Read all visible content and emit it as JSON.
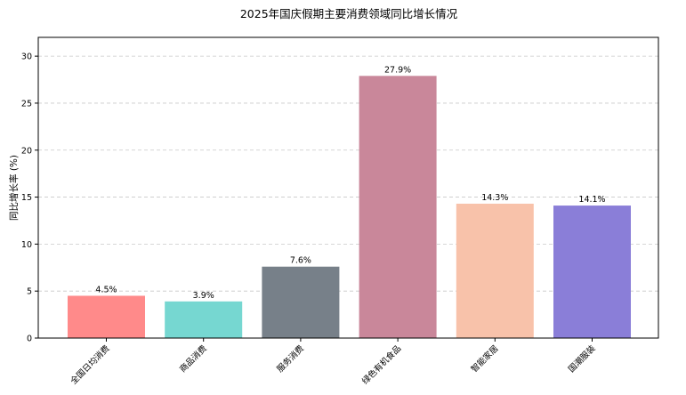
{
  "chart_data": {
    "type": "bar",
    "title": "2025年国庆假期主要消费领域同比增长情况",
    "xlabel": "",
    "ylabel": "同比增长率 (%)",
    "ylim": [
      0,
      32
    ],
    "yticks": [
      0,
      5,
      10,
      15,
      20,
      25,
      30
    ],
    "grid": true,
    "categories": [
      "全国日均消费",
      "商品消费",
      "服务消费",
      "绿色有机食品",
      "智能家居",
      "国潮服装"
    ],
    "values": [
      4.5,
      3.9,
      7.6,
      27.9,
      14.3,
      14.1
    ],
    "value_labels": [
      "4.5%",
      "3.9%",
      "7.6%",
      "27.9%",
      "14.3%",
      "14.1%"
    ],
    "colors": [
      "#ff8a8a",
      "#76d7d1",
      "#778089",
      "#c9879a",
      "#f8c2aa",
      "#8a7ed8"
    ]
  }
}
